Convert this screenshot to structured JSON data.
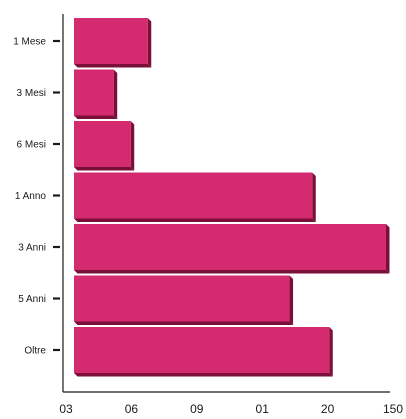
{
  "chart_data": {
    "type": "bar",
    "orientation": "horizontal",
    "categories": [
      "1 Mese",
      "3 Mesi",
      "6 Mesi",
      "1 Anno",
      "3 Anni",
      "5 Anni",
      "Oltre"
    ],
    "values": [
      13,
      7,
      10,
      42,
      55,
      38,
      45
    ],
    "x_tick_labels": [
      "03",
      "06",
      "09",
      "01",
      "20",
      "150"
    ],
    "xlim": [
      0,
      55
    ],
    "bar_color": "#d42a6f",
    "bar_shadow_color": "#7a0f3a",
    "grid": false
  }
}
